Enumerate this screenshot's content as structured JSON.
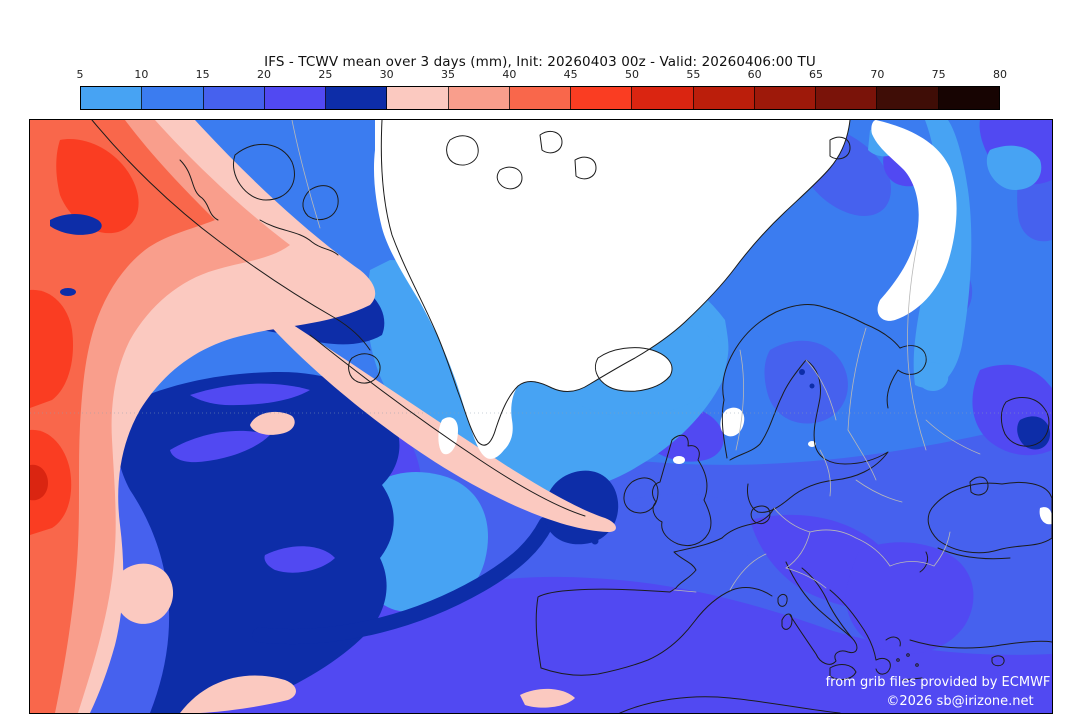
{
  "title": "IFS - TCWV mean over 3 days (mm), Init: 20260403 00z - Valid: 20260406:00 TU",
  "colorbar": {
    "unit": "mm",
    "tick_labels": [
      "5",
      "10",
      "15",
      "20",
      "25",
      "30",
      "35",
      "40",
      "45",
      "50",
      "55",
      "60",
      "65",
      "70",
      "75",
      "80"
    ],
    "segment_colors": [
      "#47a3f3",
      "#3b7cf0",
      "#4661ee",
      "#5149f2",
      "#0d2da8",
      "#fbc9c0",
      "#f99e8c",
      "#f9674b",
      "#fa3d22",
      "#da2511",
      "#bb1e0b",
      "#9e190a",
      "#7a1309",
      "#3f0d06",
      "#170402"
    ]
  },
  "map": {
    "palette": {
      "below_5": "#ffffff",
      "tcwv_5_10": "#47a3f3",
      "tcwv_10_15": "#3b7cf0",
      "tcwv_15_20": "#4661ee",
      "tcwv_20_25": "#5149f2",
      "tcwv_25_30": "#0d2da8",
      "tcwv_30_35": "#fbc9c0",
      "tcwv_35_40": "#f99e8c",
      "tcwv_40_45": "#f9674b",
      "tcwv_45_50": "#fa3d22",
      "tcwv_50_55": "#da2511",
      "coastline": "#1c1c1c",
      "country_border": "#b8b8b8",
      "graticule": "#8fa0b0"
    },
    "attribution_line1": "from grib files provided by ECMWF",
    "attribution_line2": "©2026 sb@irizone.net"
  }
}
